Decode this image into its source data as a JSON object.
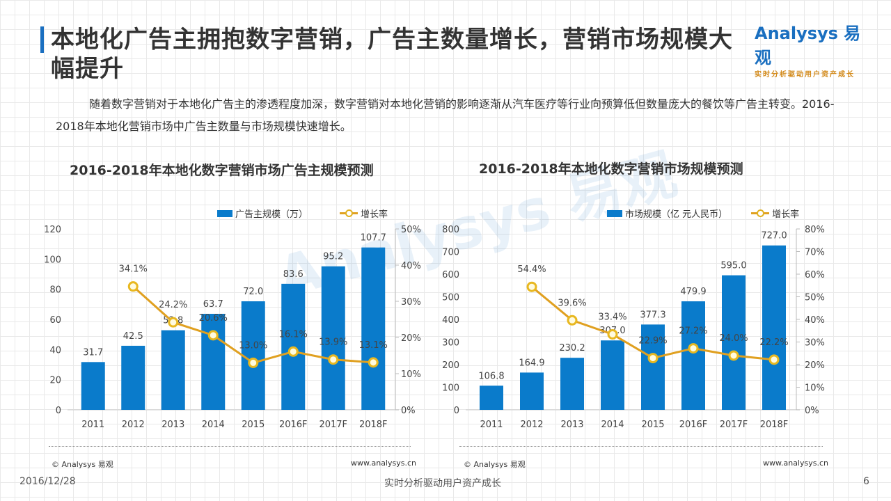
{
  "header": {
    "title": "本地化广告主拥抱数字营销，广告主数量增长，营销市场规模大幅提升",
    "intro": "随着数字营销对于本地化广告主的渗透程度加深，数字营销对本地化营销的影响逐渐从汽车医疗等行业向预算低但数量庞大的餐饮等广告主转变。2016-2018年本地化营销市场中广告主数量与市场规模快速增长。"
  },
  "logo": {
    "name": "Analysys 易观",
    "tagline": "实时分析驱动用户资产成长"
  },
  "watermark": "Analysys 易观",
  "colors": {
    "bar": "#0a7bcb",
    "line": "#e0a020",
    "title_bar": "#1a6fc0"
  },
  "chart_data": [
    {
      "type": "bar",
      "title": "2016-2018年本地化数字营销市场广告主规模预测",
      "categories": [
        "2011",
        "2012",
        "2013",
        "2014",
        "2015",
        "2016F",
        "2017F",
        "2018F"
      ],
      "series": [
        {
          "name": "广告主规模（万）",
          "type": "bar",
          "axis": "left",
          "values": [
            31.7,
            42.5,
            52.8,
            63.7,
            72.0,
            83.6,
            95.2,
            107.7
          ],
          "labels": [
            "31.7",
            "42.5",
            "52.8",
            "63.7",
            "72.0",
            "83.6",
            "95.2",
            "107.7"
          ]
        },
        {
          "name": "增长率",
          "type": "line",
          "axis": "right",
          "values": [
            null,
            34.1,
            24.2,
            20.6,
            13.0,
            16.1,
            13.9,
            13.1
          ],
          "labels": [
            "",
            "34.1%",
            "24.2%",
            "20.6%",
            "13.0%",
            "16.1%",
            "13.9%",
            "13.1%"
          ]
        }
      ],
      "ylim": [
        0,
        120
      ],
      "yticks": [
        "0",
        "20",
        "40",
        "60",
        "80",
        "100",
        "120"
      ],
      "y2lim": [
        0,
        50
      ],
      "y2ticks": [
        "0%",
        "10%",
        "20%",
        "30%",
        "40%",
        "50%"
      ],
      "legend": "top-right",
      "credit": "© Analysys 易观",
      "url": "www.analysys.cn"
    },
    {
      "type": "bar",
      "title": "2016-2018年本地化数字营销市场规模预测",
      "categories": [
        "2011",
        "2012",
        "2013",
        "2014",
        "2015",
        "2016F",
        "2017F",
        "2018F"
      ],
      "series": [
        {
          "name": "市场规模（亿 元人民币）",
          "type": "bar",
          "axis": "left",
          "values": [
            106.8,
            164.9,
            230.2,
            307.0,
            377.3,
            479.9,
            595.0,
            727.0
          ],
          "labels": [
            "106.8",
            "164.9",
            "230.2",
            "307.0",
            "377.3",
            "479.9",
            "595.0",
            "727.0"
          ]
        },
        {
          "name": "增长率",
          "type": "line",
          "axis": "right",
          "values": [
            null,
            54.4,
            39.6,
            33.4,
            22.9,
            27.2,
            24.0,
            22.2
          ],
          "labels": [
            "",
            "54.4%",
            "39.6%",
            "33.4%",
            "22.9%",
            "27.2%",
            "24.0%",
            "22.2%"
          ]
        }
      ],
      "ylim": [
        0,
        800
      ],
      "yticks": [
        "0",
        "100",
        "200",
        "300",
        "400",
        "500",
        "600",
        "700",
        "800"
      ],
      "y2lim": [
        0,
        80
      ],
      "y2ticks": [
        "0%",
        "10%",
        "20%",
        "30%",
        "40%",
        "50%",
        "60%",
        "70%",
        "80%"
      ],
      "legend": "top-right",
      "credit": "© Analysys 易观",
      "url": "www.analysys.cn"
    }
  ],
  "footer": {
    "date": "2016/12/28",
    "slogan": "实时分析驱动用户资产成长",
    "page": "6"
  }
}
